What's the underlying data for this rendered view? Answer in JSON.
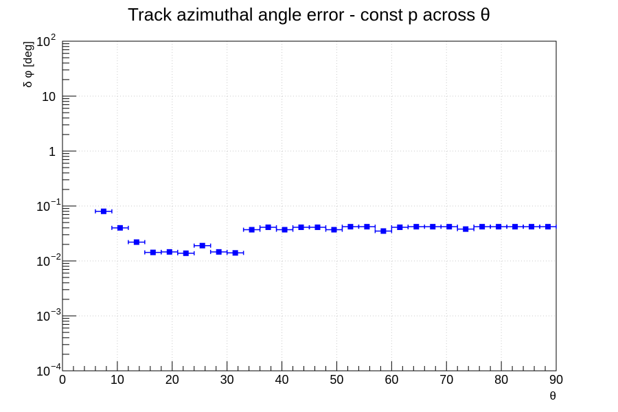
{
  "chart_data": {
    "type": "scatter",
    "title": "Track azimuthal angle error - const p across θ",
    "xlabel": "θ",
    "ylabel": "δ φ [deg]",
    "xlim": [
      0,
      90
    ],
    "ylim": [
      0.0001,
      100
    ],
    "yscale": "log",
    "grid": true,
    "marker_color": "#0000ff",
    "x_ticks": [
      "0",
      "10",
      "20",
      "30",
      "40",
      "50",
      "60",
      "70",
      "80",
      "90"
    ],
    "y_ticks": [
      {
        "base": "10",
        "exp": "−4"
      },
      {
        "base": "10",
        "exp": "−3"
      },
      {
        "base": "10",
        "exp": "−2"
      },
      {
        "base": "10",
        "exp": "−1"
      },
      {
        "base": "1",
        "exp": ""
      },
      {
        "base": "10",
        "exp": ""
      },
      {
        "base": "10",
        "exp": "2"
      }
    ],
    "series": [
      {
        "x": [
          7.5,
          10.5,
          13.5,
          16.5,
          19.5,
          22.5,
          25.5,
          28.5,
          31.5,
          34.5,
          37.5,
          40.5,
          43.5,
          46.5,
          49.5,
          52.5,
          55.5,
          58.5,
          61.5,
          64.5,
          67.5,
          70.5,
          73.5,
          76.5,
          79.5,
          82.5,
          85.5,
          88.5
        ],
        "y": [
          0.08,
          0.04,
          0.022,
          0.0143,
          0.0146,
          0.0138,
          0.019,
          0.0146,
          0.014,
          0.037,
          0.041,
          0.037,
          0.041,
          0.041,
          0.037,
          0.042,
          0.042,
          0.035,
          0.041,
          0.042,
          0.042,
          0.042,
          0.038,
          0.042,
          0.042,
          0.042,
          0.042,
          0.042
        ],
        "xerr": 1.5
      }
    ]
  }
}
